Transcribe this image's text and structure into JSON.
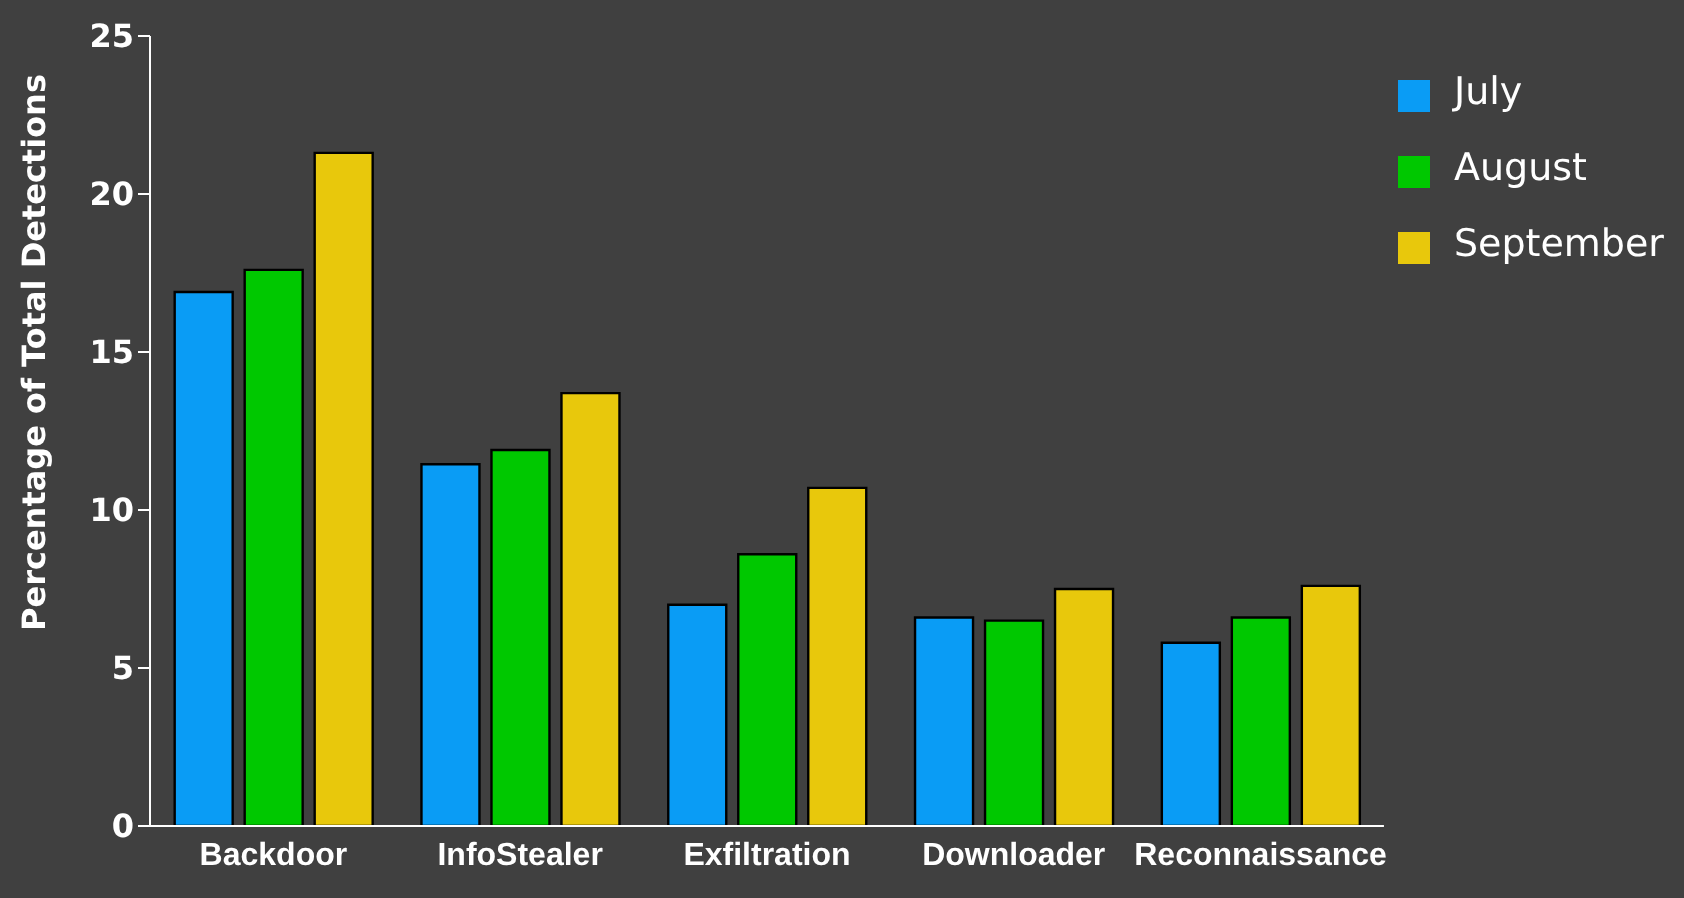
{
  "chart_data": {
    "type": "bar",
    "ylabel": "Percentage of Total Detections",
    "categories": [
      "Backdoor",
      "InfoStealer",
      "Exfiltration",
      "Downloader",
      "Reconnaissance"
    ],
    "series": [
      {
        "name": "July",
        "color": "#0a9cf5",
        "values": [
          16.9,
          11.45,
          7.0,
          6.6,
          5.8
        ]
      },
      {
        "name": "August",
        "color": "#00c800",
        "values": [
          17.6,
          11.9,
          8.6,
          6.5,
          6.6
        ]
      },
      {
        "name": "September",
        "color": "#e8c80c",
        "values": [
          21.3,
          13.7,
          10.7,
          7.5,
          7.6
        ]
      }
    ],
    "ylim": [
      0,
      25
    ],
    "yticks": [
      0,
      5,
      10,
      15,
      20,
      25
    ],
    "grid": false,
    "legend": "top right"
  }
}
